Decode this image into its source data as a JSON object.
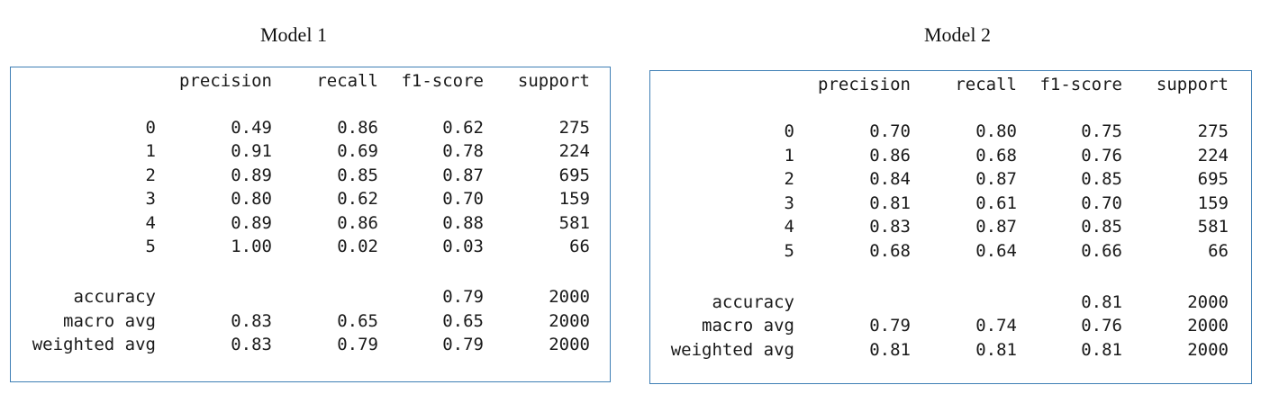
{
  "reports": [
    {
      "title": "Model 1",
      "headers": [
        "precision",
        "recall",
        "f1-score",
        "support"
      ],
      "rows": [
        {
          "label": "0",
          "precision": "0.49",
          "recall": "0.86",
          "f1": "0.62",
          "support": "275"
        },
        {
          "label": "1",
          "precision": "0.91",
          "recall": "0.69",
          "f1": "0.78",
          "support": "224"
        },
        {
          "label": "2",
          "precision": "0.89",
          "recall": "0.85",
          "f1": "0.87",
          "support": "695"
        },
        {
          "label": "3",
          "precision": "0.80",
          "recall": "0.62",
          "f1": "0.70",
          "support": "159"
        },
        {
          "label": "4",
          "precision": "0.89",
          "recall": "0.86",
          "f1": "0.88",
          "support": "581"
        },
        {
          "label": "5",
          "precision": "1.00",
          "recall": "0.02",
          "f1": "0.03",
          "support": "66"
        }
      ],
      "summary": [
        {
          "label": "accuracy",
          "precision": "",
          "recall": "",
          "f1": "0.79",
          "support": "2000"
        },
        {
          "label": "macro avg",
          "precision": "0.83",
          "recall": "0.65",
          "f1": "0.65",
          "support": "2000"
        },
        {
          "label": "weighted avg",
          "precision": "0.83",
          "recall": "0.79",
          "f1": "0.79",
          "support": "2000"
        }
      ]
    },
    {
      "title": "Model 2",
      "headers": [
        "precision",
        "recall",
        "f1-score",
        "support"
      ],
      "rows": [
        {
          "label": "0",
          "precision": "0.70",
          "recall": "0.80",
          "f1": "0.75",
          "support": "275"
        },
        {
          "label": "1",
          "precision": "0.86",
          "recall": "0.68",
          "f1": "0.76",
          "support": "224"
        },
        {
          "label": "2",
          "precision": "0.84",
          "recall": "0.87",
          "f1": "0.85",
          "support": "695"
        },
        {
          "label": "3",
          "precision": "0.81",
          "recall": "0.61",
          "f1": "0.70",
          "support": "159"
        },
        {
          "label": "4",
          "precision": "0.83",
          "recall": "0.87",
          "f1": "0.85",
          "support": "581"
        },
        {
          "label": "5",
          "precision": "0.68",
          "recall": "0.64",
          "f1": "0.66",
          "support": "66"
        }
      ],
      "summary": [
        {
          "label": "accuracy",
          "precision": "",
          "recall": "",
          "f1": "0.81",
          "support": "2000"
        },
        {
          "label": "macro avg",
          "precision": "0.79",
          "recall": "0.74",
          "f1": "0.76",
          "support": "2000"
        },
        {
          "label": "weighted avg",
          "precision": "0.81",
          "recall": "0.81",
          "f1": "0.81",
          "support": "2000"
        }
      ]
    }
  ]
}
